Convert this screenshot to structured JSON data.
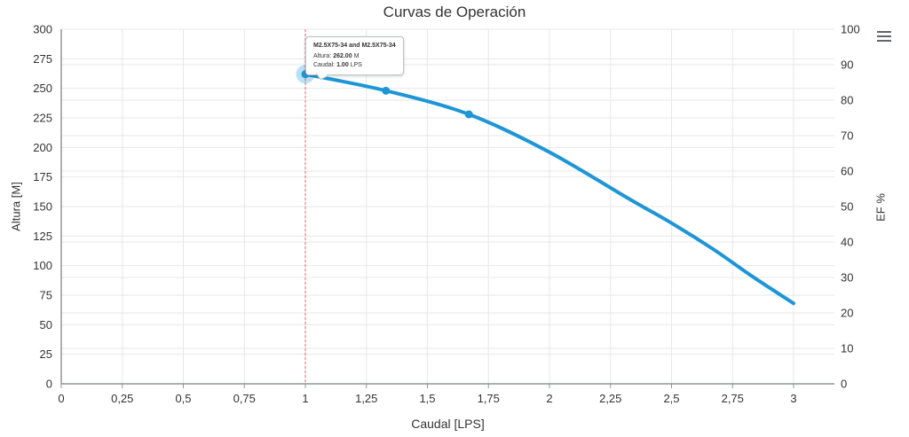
{
  "title": "Curvas de Operación",
  "menu": {
    "button": "chart-context-menu"
  },
  "colors": {
    "series_blue": "#1e96d6",
    "grid": "#e7e7e7",
    "axis_line": "#919599",
    "crosshair_red": "#e06a65",
    "text": "#333333",
    "tooltip_border": "#bcc1c5"
  },
  "tooltip": {
    "header": "M2.5X75-34 and M2.5X75-34",
    "rows": [
      {
        "label": "Altura:",
        "value": "262.00",
        "unit": "M"
      },
      {
        "label": "Caudal:",
        "value": "1.00",
        "unit": "LPS"
      }
    ]
  },
  "chart_data": {
    "type": "line",
    "title": "Curvas de Operación",
    "legend": false,
    "grid": true,
    "x_axis": {
      "title": "Caudal [LPS]",
      "min": 0,
      "max": 3,
      "tick_values": [
        0,
        0.25,
        0.5,
        0.75,
        1,
        1.25,
        1.5,
        1.75,
        2,
        2.25,
        2.5,
        2.75,
        3
      ],
      "tick_labels": [
        "0",
        "0,25",
        "0,5",
        "0,75",
        "1",
        "1,25",
        "1,5",
        "1,75",
        "2",
        "2,25",
        "2,5",
        "2,75",
        "3"
      ]
    },
    "y_axis_left": {
      "title": "Altura [M]",
      "min": 0,
      "max": 300,
      "tick_values": [
        0,
        25,
        50,
        75,
        100,
        125,
        150,
        175,
        200,
        225,
        250,
        275,
        300
      ],
      "tick_labels": [
        "0",
        "25",
        "50",
        "75",
        "100",
        "125",
        "150",
        "175",
        "200",
        "225",
        "250",
        "275",
        "300"
      ]
    },
    "y_axis_right": {
      "title": "EF %",
      "min": 0,
      "max": 100,
      "tick_values": [
        0,
        10,
        20,
        30,
        40,
        50,
        60,
        70,
        80,
        90,
        100
      ],
      "tick_labels": [
        "0",
        "10",
        "20",
        "30",
        "40",
        "50",
        "60",
        "70",
        "80",
        "90",
        "100"
      ]
    },
    "series": [
      {
        "name": "M2.5X75-34 and M2.5X75-34",
        "color": "#1e96d6",
        "y_axis": "left",
        "points": [
          [
            1,
            262
          ],
          [
            1.33,
            248
          ],
          [
            1.67,
            228
          ],
          [
            2,
            196
          ],
          [
            2.33,
            156
          ],
          [
            2.5,
            136
          ],
          [
            2.67,
            114
          ],
          [
            2.83,
            91
          ],
          [
            3,
            68
          ]
        ],
        "visible_markers": [
          [
            1,
            262
          ],
          [
            1.33,
            248
          ],
          [
            1.67,
            228
          ]
        ],
        "active_point": {
          "x": 1,
          "y": 262
        }
      }
    ],
    "crosshair": {
      "x": 1,
      "style": "dashed",
      "color": "#e06a65"
    }
  }
}
